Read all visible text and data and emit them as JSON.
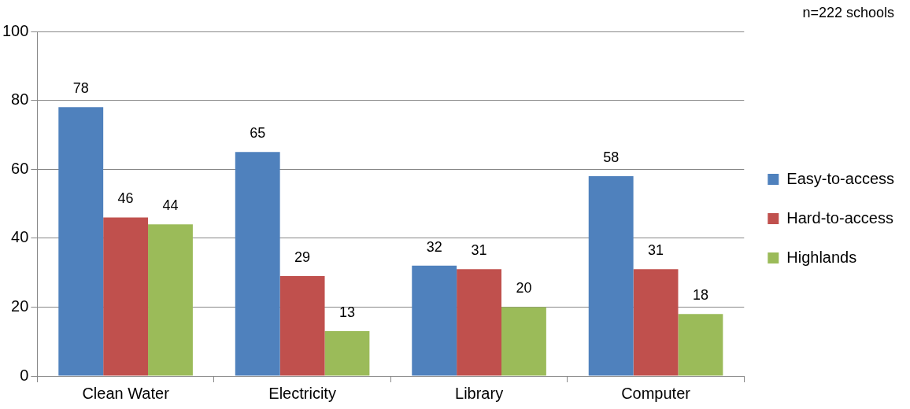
{
  "chart_data": {
    "type": "bar",
    "categories": [
      "Clean Water",
      "Electricity",
      "Library",
      "Computer"
    ],
    "series": [
      {
        "name": "Easy-to-access",
        "color": "#4f81bd",
        "values": [
          78,
          65,
          32,
          58
        ]
      },
      {
        "name": "Hard-to-access",
        "color": "#c0504d",
        "values": [
          46,
          29,
          31,
          31
        ]
      },
      {
        "name": "Highlands",
        "color": "#9bbb59",
        "values": [
          44,
          13,
          20,
          18
        ]
      }
    ],
    "ylim": [
      0,
      100
    ],
    "yticks": [
      0,
      20,
      40,
      60,
      80,
      100
    ],
    "grid": "y",
    "legend": "right",
    "data_labels": true,
    "annotations": [
      "n=222 schools"
    ]
  }
}
